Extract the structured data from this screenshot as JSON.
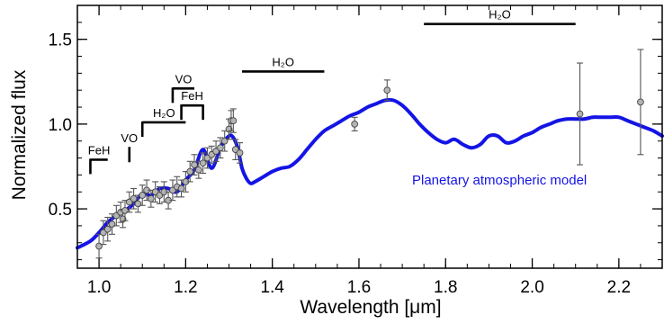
{
  "chart_data": {
    "type": "line",
    "xlabel": "Wavelength [μm]",
    "ylabel": "Normalized flux",
    "xlim": [
      0.95,
      2.3
    ],
    "ylim": [
      0.15,
      1.7
    ],
    "x_ticks": [
      {
        "value": 1.0,
        "label": "1.0"
      },
      {
        "value": 1.2,
        "label": "1.2"
      },
      {
        "value": 1.4,
        "label": "1.4"
      },
      {
        "value": 1.6,
        "label": "1.6"
      },
      {
        "value": 1.8,
        "label": "1.8"
      },
      {
        "value": 2.0,
        "label": "2.0"
      },
      {
        "value": 2.2,
        "label": "2.2"
      }
    ],
    "y_ticks": [
      {
        "value": 0.5,
        "label": "0.5"
      },
      {
        "value": 1.0,
        "label": "1.0"
      },
      {
        "value": 1.5,
        "label": "1.5"
      }
    ],
    "model": {
      "name": "Planetary atmospheric model",
      "color": "#1414e6",
      "x": [
        0.95,
        0.98,
        1.0,
        1.02,
        1.04,
        1.06,
        1.08,
        1.1,
        1.12,
        1.14,
        1.16,
        1.18,
        1.2,
        1.22,
        1.24,
        1.26,
        1.28,
        1.3,
        1.31,
        1.32,
        1.33,
        1.34,
        1.35,
        1.36,
        1.38,
        1.4,
        1.42,
        1.44,
        1.46,
        1.48,
        1.5,
        1.52,
        1.54,
        1.56,
        1.58,
        1.6,
        1.62,
        1.64,
        1.66,
        1.68,
        1.7,
        1.72,
        1.74,
        1.76,
        1.78,
        1.8,
        1.82,
        1.84,
        1.86,
        1.88,
        1.9,
        1.92,
        1.94,
        1.96,
        1.98,
        2.0,
        2.02,
        2.04,
        2.06,
        2.08,
        2.1,
        2.12,
        2.14,
        2.16,
        2.18,
        2.2,
        2.22,
        2.24,
        2.26,
        2.28,
        2.3
      ],
      "y": [
        0.27,
        0.31,
        0.36,
        0.42,
        0.46,
        0.49,
        0.53,
        0.59,
        0.58,
        0.62,
        0.62,
        0.6,
        0.67,
        0.73,
        0.85,
        0.74,
        0.86,
        0.93,
        0.92,
        0.86,
        0.74,
        0.68,
        0.65,
        0.66,
        0.69,
        0.72,
        0.74,
        0.75,
        0.79,
        0.85,
        0.91,
        0.96,
        0.99,
        1.02,
        1.05,
        1.07,
        1.1,
        1.12,
        1.14,
        1.14,
        1.11,
        1.06,
        1.0,
        0.95,
        0.91,
        0.89,
        0.91,
        0.88,
        0.86,
        0.88,
        0.93,
        0.93,
        0.89,
        0.9,
        0.93,
        0.95,
        0.98,
        1.0,
        1.02,
        1.03,
        1.03,
        1.03,
        1.04,
        1.04,
        1.04,
        1.04,
        1.02,
        1.0,
        0.98,
        0.96,
        0.93
      ]
    },
    "observations": {
      "color": "#b4b4b4",
      "points": [
        {
          "x": 1.0,
          "y": 0.28,
          "err": 0.07
        },
        {
          "x": 1.01,
          "y": 0.36,
          "err": 0.07
        },
        {
          "x": 1.02,
          "y": 0.38,
          "err": 0.07
        },
        {
          "x": 1.03,
          "y": 0.41,
          "err": 0.06
        },
        {
          "x": 1.04,
          "y": 0.46,
          "err": 0.06
        },
        {
          "x": 1.05,
          "y": 0.48,
          "err": 0.06
        },
        {
          "x": 1.055,
          "y": 0.44,
          "err": 0.05
        },
        {
          "x": 1.06,
          "y": 0.49,
          "err": 0.06
        },
        {
          "x": 1.07,
          "y": 0.54,
          "err": 0.06
        },
        {
          "x": 1.08,
          "y": 0.56,
          "err": 0.06
        },
        {
          "x": 1.09,
          "y": 0.53,
          "err": 0.05
        },
        {
          "x": 1.1,
          "y": 0.58,
          "err": 0.06
        },
        {
          "x": 1.11,
          "y": 0.61,
          "err": 0.06
        },
        {
          "x": 1.12,
          "y": 0.56,
          "err": 0.05
        },
        {
          "x": 1.13,
          "y": 0.6,
          "err": 0.06
        },
        {
          "x": 1.14,
          "y": 0.58,
          "err": 0.05
        },
        {
          "x": 1.15,
          "y": 0.6,
          "err": 0.06
        },
        {
          "x": 1.16,
          "y": 0.55,
          "err": 0.05
        },
        {
          "x": 1.17,
          "y": 0.61,
          "err": 0.06
        },
        {
          "x": 1.18,
          "y": 0.63,
          "err": 0.06
        },
        {
          "x": 1.19,
          "y": 0.62,
          "err": 0.05
        },
        {
          "x": 1.2,
          "y": 0.66,
          "err": 0.06
        },
        {
          "x": 1.21,
          "y": 0.72,
          "err": 0.06
        },
        {
          "x": 1.22,
          "y": 0.76,
          "err": 0.06
        },
        {
          "x": 1.23,
          "y": 0.73,
          "err": 0.05
        },
        {
          "x": 1.24,
          "y": 0.77,
          "err": 0.06
        },
        {
          "x": 1.25,
          "y": 0.8,
          "err": 0.06
        },
        {
          "x": 1.26,
          "y": 0.82,
          "err": 0.05
        },
        {
          "x": 1.27,
          "y": 0.84,
          "err": 0.06
        },
        {
          "x": 1.28,
          "y": 0.86,
          "err": 0.06
        },
        {
          "x": 1.29,
          "y": 0.9,
          "err": 0.06
        },
        {
          "x": 1.3,
          "y": 0.97,
          "err": 0.06
        },
        {
          "x": 1.305,
          "y": 1.02,
          "err": 0.06
        },
        {
          "x": 1.31,
          "y": 1.02,
          "err": 0.07
        },
        {
          "x": 1.315,
          "y": 0.85,
          "err": 0.06
        },
        {
          "x": 1.325,
          "y": 0.83,
          "err": 0.06
        },
        {
          "x": 1.59,
          "y": 1.0,
          "err": 0.04
        },
        {
          "x": 1.665,
          "y": 1.2,
          "err": 0.06
        },
        {
          "x": 2.11,
          "y": 1.06,
          "err": 0.3
        },
        {
          "x": 2.25,
          "y": 1.13,
          "err": 0.31
        }
      ]
    },
    "annotations": [
      {
        "label": "FeH",
        "x1": 0.98,
        "x2": 1.02,
        "y": 0.79,
        "ticks": "left"
      },
      {
        "label": "VO",
        "x1": 1.07,
        "x2": 1.07,
        "y": 0.86,
        "ticks": "left"
      },
      {
        "label": "H₂O",
        "x1": 1.1,
        "x2": 1.2,
        "y": 1.01,
        "ticks": "left"
      },
      {
        "label": "VO",
        "x1": 1.17,
        "x2": 1.22,
        "y": 1.21,
        "ticks": "left"
      },
      {
        "label": "FeH",
        "x1": 1.19,
        "x2": 1.24,
        "y": 1.11,
        "ticks": "both"
      },
      {
        "label": "H₂O",
        "x1": 1.33,
        "x2": 1.52,
        "y": 1.31,
        "ticks": "none"
      },
      {
        "label": "H₂O",
        "x1": 1.75,
        "x2": 2.1,
        "y": 1.59,
        "ticks": "none"
      }
    ]
  }
}
